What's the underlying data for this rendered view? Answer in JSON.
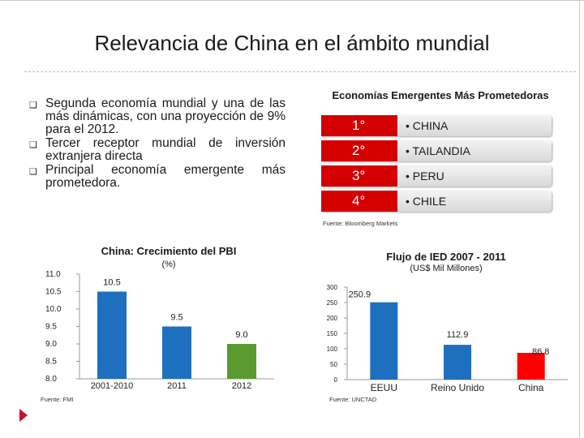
{
  "title": "Relevancia de China en el ámbito mundial",
  "bullets": [
    "Segunda economía mundial y una de las más dinámicas, con una proyección de 9% para el 2012.",
    "Tercer receptor mundial de inversión extranjera directa",
    "Principal economía emergente más prometedora."
  ],
  "emerging": {
    "title": "Economías Emergentes Más Prometedoras",
    "rows": [
      {
        "rank": "1°",
        "country": "• CHINA"
      },
      {
        "rank": "2°",
        "country": "• TAILANDIA"
      },
      {
        "rank": "3°",
        "country": "• PERU"
      },
      {
        "rank": "4°",
        "country": "• CHILE"
      }
    ],
    "source": "Fuente: Bloomberg Markets"
  },
  "colors": {
    "accent": "#d40000",
    "bar_blue": "#1f6fbf",
    "bar_green": "#5a9a2e",
    "bar_red": "#ff0000"
  },
  "chart_data": [
    {
      "type": "bar",
      "title": "China: Crecimiento del PBI",
      "subtitle": "(%)",
      "categories": [
        "2001-2010",
        "2011",
        "2012"
      ],
      "values": [
        10.5,
        9.5,
        9.0
      ],
      "value_labels": [
        "10.5",
        "9.5",
        "9.0"
      ],
      "yticks": [
        "11.0",
        "10.5",
        "10.0",
        "9.5",
        "9.0",
        "8.5",
        "8.0"
      ],
      "ylim": [
        8.0,
        11.0
      ],
      "colors": [
        "#1f6fbf",
        "#1f6fbf",
        "#5a9a2e"
      ],
      "source": "Fuente: FMI"
    },
    {
      "type": "bar",
      "title": "Flujo de IED 2007 - 2011",
      "subtitle": "(US$ Mil Millones)",
      "categories": [
        "EEUU",
        "Reino Unido",
        "China"
      ],
      "values": [
        250.9,
        112.9,
        86.8
      ],
      "value_labels": [
        "250.9",
        "112.9",
        "86.8"
      ],
      "yticks": [
        "300",
        "250",
        "200",
        "150",
        "100",
        "50",
        "0"
      ],
      "ylim": [
        0,
        300
      ],
      "colors": [
        "#1f6fbf",
        "#1f6fbf",
        "#ff0000"
      ],
      "source": "Fuente: UNCTAD"
    }
  ]
}
